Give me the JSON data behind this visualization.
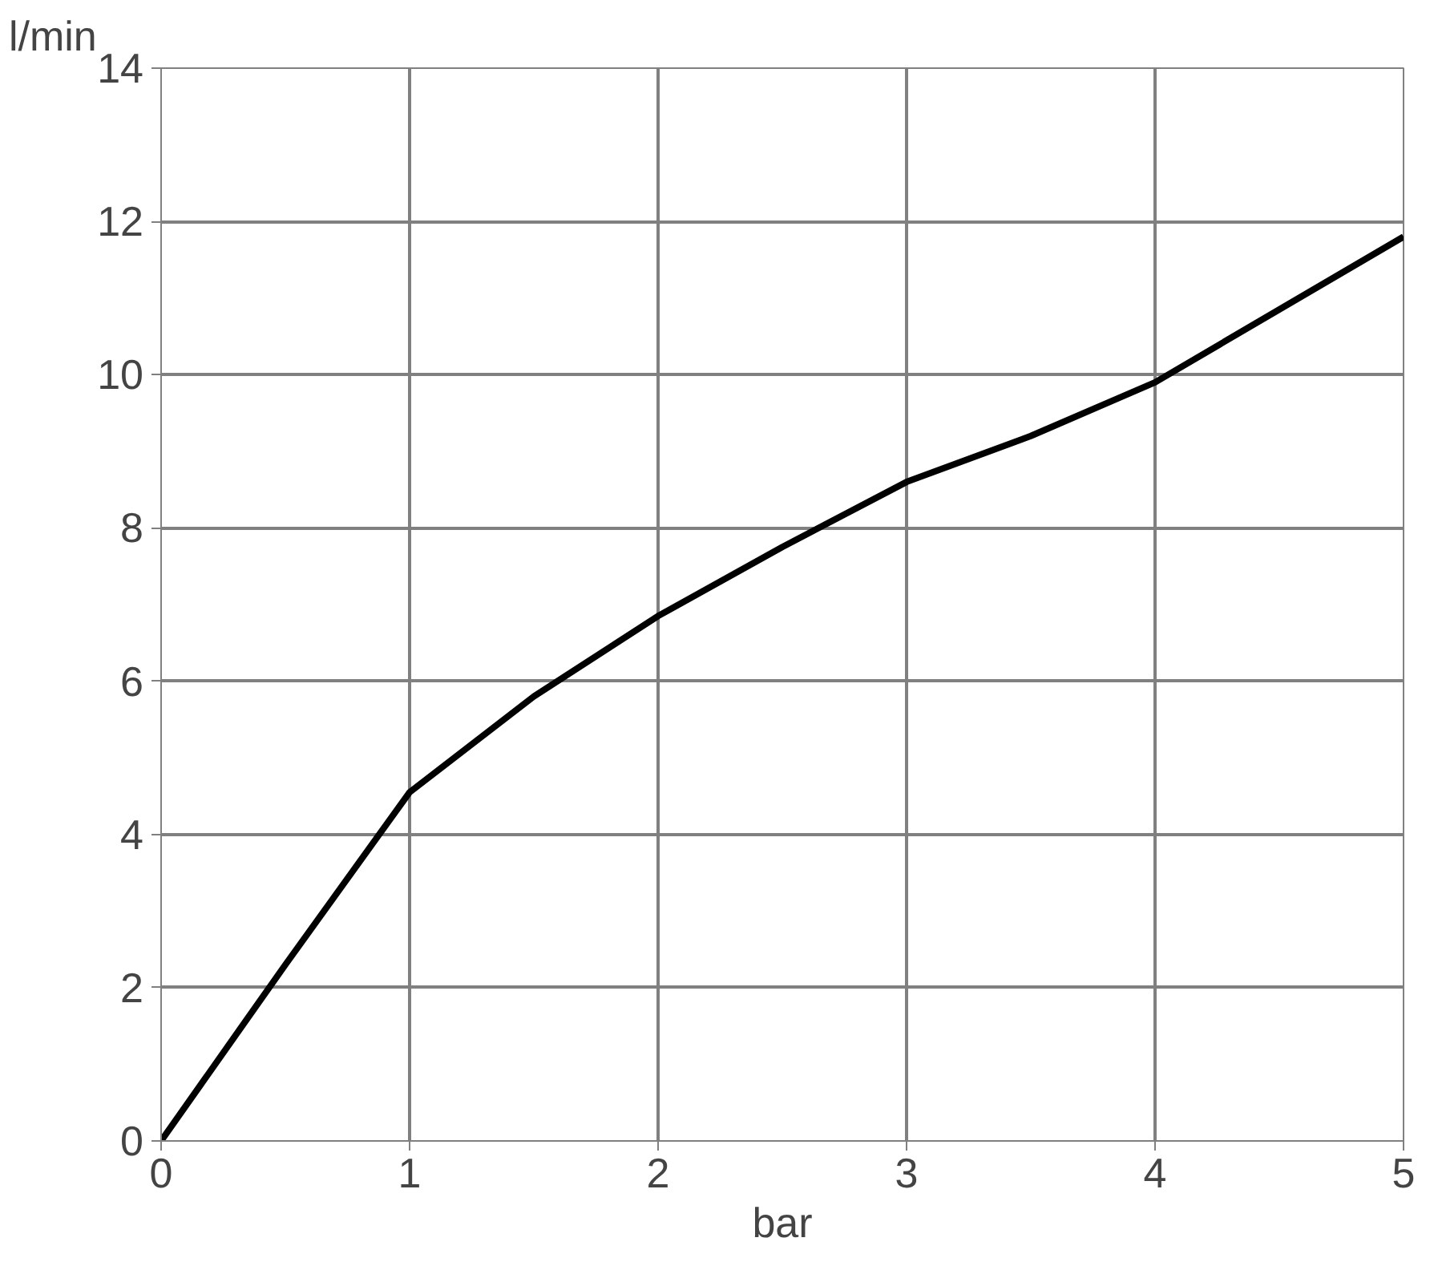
{
  "chart_data": {
    "type": "line",
    "xlabel": "bar",
    "ylabel": "l/min",
    "x": [
      0,
      0.5,
      1,
      1.5,
      2,
      2.5,
      3,
      3.5,
      4,
      4.5,
      5
    ],
    "series": [
      {
        "color": "#000000",
        "values": [
          0,
          2.3,
          4.55,
          5.8,
          6.85,
          7.75,
          8.6,
          9.2,
          9.9,
          10.85,
          11.8
        ]
      }
    ],
    "xlim": [
      0,
      5
    ],
    "ylim": [
      0,
      14
    ],
    "xticks": [
      0,
      1,
      2,
      3,
      4,
      5
    ],
    "yticks": [
      0,
      2,
      4,
      6,
      8,
      10,
      12,
      14
    ],
    "grid": true,
    "marker": "none",
    "line_style": "solid"
  }
}
